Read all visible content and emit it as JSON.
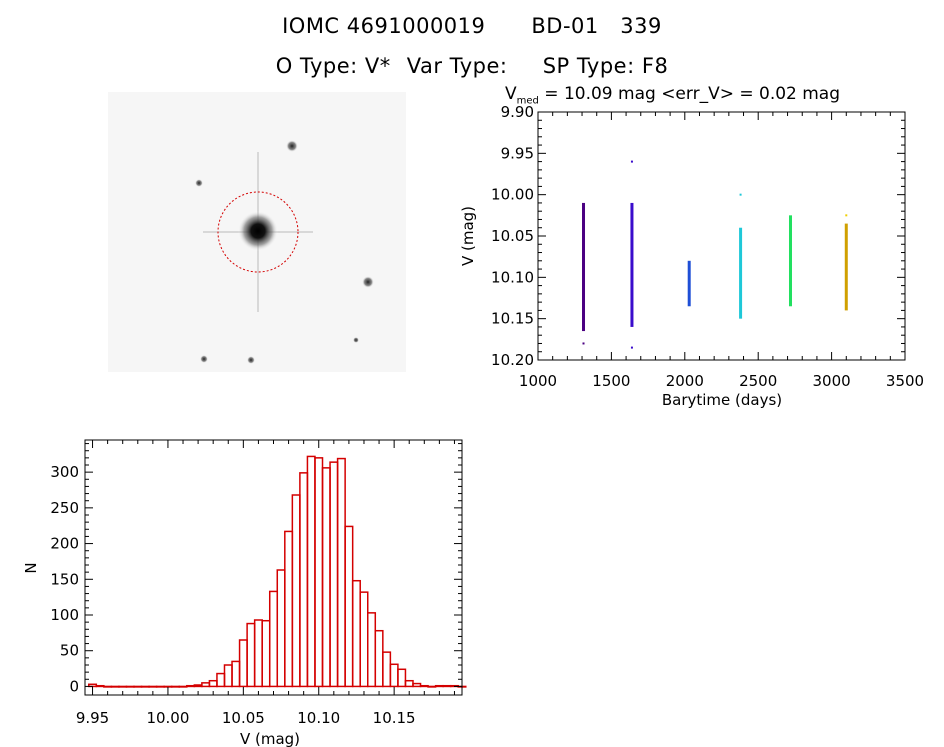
{
  "header": {
    "catalog_id": "IOMC 4691000019",
    "object_name": "BD-01   339",
    "object_type_label": "O Type:",
    "object_type_value": "V*",
    "var_type_label": "Var Type:",
    "var_type_value": "",
    "sp_type_label": "SP Type:",
    "sp_type_value": "F8"
  },
  "colors": {
    "histogram": "#d40000",
    "aperture": "#d40000",
    "axis": "#000000"
  },
  "stamp": {
    "has_aperture_circle": true,
    "icons": [
      "sky-image",
      "aperture-circle",
      "compass-arrow"
    ]
  },
  "chart_data": [
    {
      "type": "scatter",
      "title_prefix": "V",
      "title_sub": "med",
      "title_rest": "= 10.09 mag <err_V> = 0.02 mag",
      "xlabel": "Barytime (days)",
      "ylabel": "V (mag)",
      "xlim": [
        1000,
        3500
      ],
      "ylim": [
        10.2,
        9.9
      ],
      "xticks": [
        1000,
        1500,
        2000,
        2500,
        3000,
        3500
      ],
      "xtick_labels": [
        "1000",
        "1500",
        "2000",
        "2500",
        "3000",
        "3500"
      ],
      "yticks": [
        9.9,
        9.95,
        10.0,
        10.05,
        10.1,
        10.15,
        10.2
      ],
      "ytick_labels": [
        "9.90",
        "9.95",
        "10.00",
        "10.05",
        "10.10",
        "10.15",
        "10.20"
      ],
      "clusters": [
        {
          "x": 1310,
          "ymin": 10.01,
          "ymax": 10.165,
          "color": "#4b0082"
        },
        {
          "x": 1640,
          "ymin": 10.01,
          "ymax": 10.16,
          "color": "#3a0ccc"
        },
        {
          "x": 2030,
          "ymin": 10.08,
          "ymax": 10.135,
          "color": "#1f4fd6"
        },
        {
          "x": 2380,
          "ymin": 10.04,
          "ymax": 10.15,
          "color": "#1ec8d8"
        },
        {
          "x": 2720,
          "ymin": 10.025,
          "ymax": 10.135,
          "color": "#22e060"
        },
        {
          "x": 3100,
          "ymin": 10.035,
          "ymax": 10.14,
          "color": "#d0a000"
        }
      ],
      "outliers": [
        {
          "x": 1310,
          "y": 10.18,
          "color": "#4b0082"
        },
        {
          "x": 1640,
          "y": 9.96,
          "color": "#3a0ccc"
        },
        {
          "x": 1640,
          "y": 10.185,
          "color": "#3a0ccc"
        },
        {
          "x": 2380,
          "y": 10.0,
          "color": "#1ec8d8"
        },
        {
          "x": 3100,
          "y": 10.025,
          "color": "#f0d000"
        }
      ]
    },
    {
      "type": "bar",
      "xlabel": "V (mag)",
      "ylabel": "N",
      "xlim": [
        9.945,
        10.195
      ],
      "ylim": [
        -12,
        345
      ],
      "xticks": [
        9.95,
        10.0,
        10.05,
        10.1,
        10.15
      ],
      "xtick_labels": [
        "9.95",
        "10.00",
        "10.05",
        "10.10",
        "10.15"
      ],
      "yticks": [
        0,
        50,
        100,
        150,
        200,
        250,
        300
      ],
      "ytick_labels": [
        "0",
        "50",
        "100",
        "150",
        "200",
        "250",
        "300"
      ],
      "bin_start": 9.9475,
      "bin_width": 0.005,
      "counts": [
        3,
        1,
        0,
        0,
        0,
        0,
        0,
        0,
        0,
        0,
        0,
        0,
        0,
        1,
        2,
        5,
        8,
        18,
        30,
        35,
        65,
        88,
        93,
        92,
        133,
        163,
        217,
        268,
        299,
        322,
        320,
        306,
        314,
        319,
        224,
        148,
        132,
        103,
        78,
        48,
        31,
        24,
        8,
        4,
        1,
        0,
        1,
        1,
        1,
        0
      ]
    }
  ]
}
